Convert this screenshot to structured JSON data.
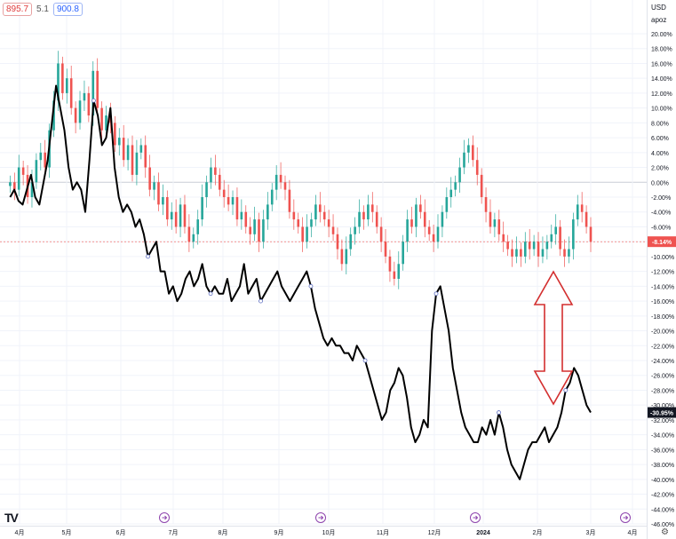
{
  "legend": {
    "value1": "895.7",
    "value2": "5.1",
    "value3": "900.8"
  },
  "axis_top": {
    "currency": "USD",
    "mode": "apoz"
  },
  "logo_text": "TV",
  "settings_icon": "gear-icon",
  "colors": {
    "up": "#26a69a",
    "down": "#ef5350",
    "line": "#000000",
    "arrow": "#d32f2f",
    "grid": "#f0f3fa",
    "zero_line": "#c9cdd6",
    "label_red_bg": "#ef5350",
    "label_black_bg": "#131722"
  },
  "chart_data": {
    "type": "line",
    "y_unit": "%",
    "ylim": [
      -46,
      22
    ],
    "y_ticks": [
      "20.00%",
      "18.00%",
      "16.00%",
      "14.00%",
      "12.00%",
      "10.00%",
      "8.00%",
      "6.00%",
      "4.00%",
      "2.00%",
      "0.00%",
      "-2.00%",
      "-4.00%",
      "-6.00%",
      "-8.00%",
      "-10.00%",
      "-12.00%",
      "-14.00%",
      "-16.00%",
      "-18.00%",
      "-20.00%",
      "-22.00%",
      "-24.00%",
      "-26.00%",
      "-28.00%",
      "-30.00%",
      "-32.00%",
      "-34.00%",
      "-36.00%",
      "-38.00%",
      "-40.00%",
      "-42.00%",
      "-44.00%",
      "-46.00%"
    ],
    "x_labels": [
      "4月",
      "5月",
      "6月",
      "7月",
      "8月",
      "9月",
      "10月",
      "11月",
      "12月",
      "2024",
      "2月",
      "3月",
      "4月"
    ],
    "last_value_labels": {
      "candles": "-8.14%",
      "line": "-30.95%"
    },
    "grid": true,
    "series": [
      {
        "kind": "candles",
        "closes": [
          0,
          -1,
          2,
          1,
          -2,
          0,
          3,
          4,
          2,
          7,
          11,
          16,
          12,
          14,
          10,
          8,
          11,
          12,
          9,
          15,
          10,
          7,
          9,
          8,
          5,
          6,
          3,
          5,
          1,
          4,
          5,
          2,
          -1,
          0,
          -3,
          -2,
          -5,
          -4,
          -6,
          -3,
          -6,
          -8,
          -7,
          -5,
          -2,
          0,
          2,
          1,
          -1,
          -2,
          -3,
          -2,
          -5,
          -4,
          -6,
          -7,
          -5,
          -8,
          -5,
          -3,
          -1,
          1,
          0,
          -1,
          -4,
          -5,
          -6,
          -8,
          -6,
          -5,
          -3,
          -4,
          -5,
          -6,
          -7,
          -9,
          -11,
          -9,
          -7,
          -6,
          -4,
          -5,
          -3,
          -4,
          -6,
          -8,
          -10,
          -12,
          -13,
          -11,
          -8,
          -5,
          -6,
          -3,
          -4,
          -6,
          -7,
          -8,
          -6,
          -4,
          -2,
          -1,
          0,
          2,
          4,
          5,
          3,
          1,
          -2,
          -4,
          -6,
          -5,
          -7,
          -8,
          -9,
          -10,
          -9,
          -10,
          -8,
          -9,
          -8,
          -10,
          -9,
          -8,
          -7,
          -6,
          -9,
          -10,
          -9,
          -5,
          -3,
          -4,
          -6,
          -8
        ],
        "x_start_month": 3.8,
        "x_end_month": 15.0
      },
      {
        "kind": "line",
        "values": [
          -2,
          -1,
          -2.5,
          -3,
          -1,
          1,
          -2,
          -3,
          0,
          3,
          8,
          13,
          10,
          7,
          2,
          -1,
          0,
          -1,
          -4,
          3,
          11,
          9,
          5,
          6,
          10,
          2,
          -2,
          -4,
          -3,
          -4,
          -6,
          -5,
          -7,
          -10,
          -9,
          -8,
          -12,
          -12,
          -15,
          -14,
          -16,
          -15,
          -13,
          -12,
          -14,
          -13,
          -11,
          -14,
          -15,
          -14,
          -15,
          -15,
          -13,
          -16,
          -15,
          -14,
          -11,
          -15,
          -14,
          -13,
          -16,
          -15,
          -14,
          -13,
          -12,
          -14,
          -15,
          -16,
          -15,
          -14,
          -13,
          -12,
          -14,
          -17,
          -19,
          -21,
          -22,
          -21,
          -22,
          -22,
          -23,
          -23,
          -24,
          -22,
          -23,
          -24,
          -26,
          -28,
          -30,
          -32,
          -31,
          -28,
          -27,
          -25,
          -26,
          -29,
          -33,
          -35,
          -34,
          -32,
          -33,
          -20,
          -15,
          -14,
          -17,
          -20,
          -25,
          -28,
          -31,
          -33,
          -34,
          -35,
          -35,
          -33,
          -34,
          -32,
          -34,
          -31,
          -33,
          -36,
          -38,
          -39,
          -40,
          -38,
          -36,
          -35,
          -35,
          -34,
          -33,
          -35,
          -34,
          -33,
          -31,
          -28,
          -27,
          -25,
          -26,
          -28,
          -30,
          -31
        ],
        "x_start_month": 3.8,
        "x_end_month": 15.0
      }
    ]
  }
}
